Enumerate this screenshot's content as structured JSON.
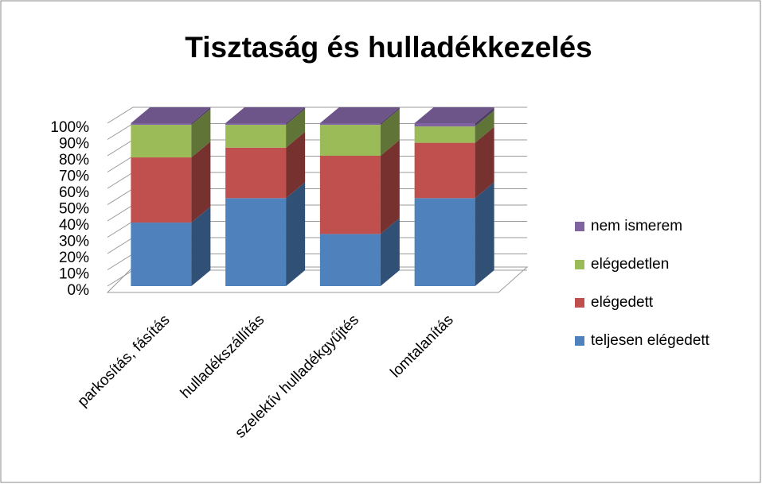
{
  "chart_data": {
    "type": "bar3d_stacked",
    "title": "Tisztaság és hulladékkezelés",
    "categories": [
      "parkosítás, fásítás",
      "hulladékszállítás",
      "szelektív hulladékgyűjtés",
      "lomtalanítás"
    ],
    "series": [
      {
        "name": "teljesen elégedett",
        "color": "#4f81bd",
        "values": [
          39,
          54,
          32,
          54
        ]
      },
      {
        "name": "elégedett",
        "color": "#c0504d",
        "values": [
          40,
          31,
          48,
          34
        ]
      },
      {
        "name": "elégedetlen",
        "color": "#9bbb59",
        "values": [
          20,
          14,
          19,
          10
        ]
      },
      {
        "name": "nem ismerem",
        "color": "#8064a2",
        "values": [
          1,
          1,
          1,
          2
        ]
      }
    ],
    "ylim": [
      0,
      100
    ],
    "yticks": [
      {
        "value": 0,
        "label": "0%"
      },
      {
        "value": 10,
        "label": "10%"
      },
      {
        "value": 20,
        "label": "20%"
      },
      {
        "value": 30,
        "label": "30%"
      },
      {
        "value": 40,
        "label": "40%"
      },
      {
        "value": 50,
        "label": "50%"
      },
      {
        "value": 60,
        "label": "60%"
      },
      {
        "value": 70,
        "label": "70%"
      },
      {
        "value": 80,
        "label": "80%"
      },
      {
        "value": 90,
        "label": "90%"
      },
      {
        "value": 100,
        "label": "100%"
      }
    ],
    "grid": true,
    "legend": "right"
  }
}
